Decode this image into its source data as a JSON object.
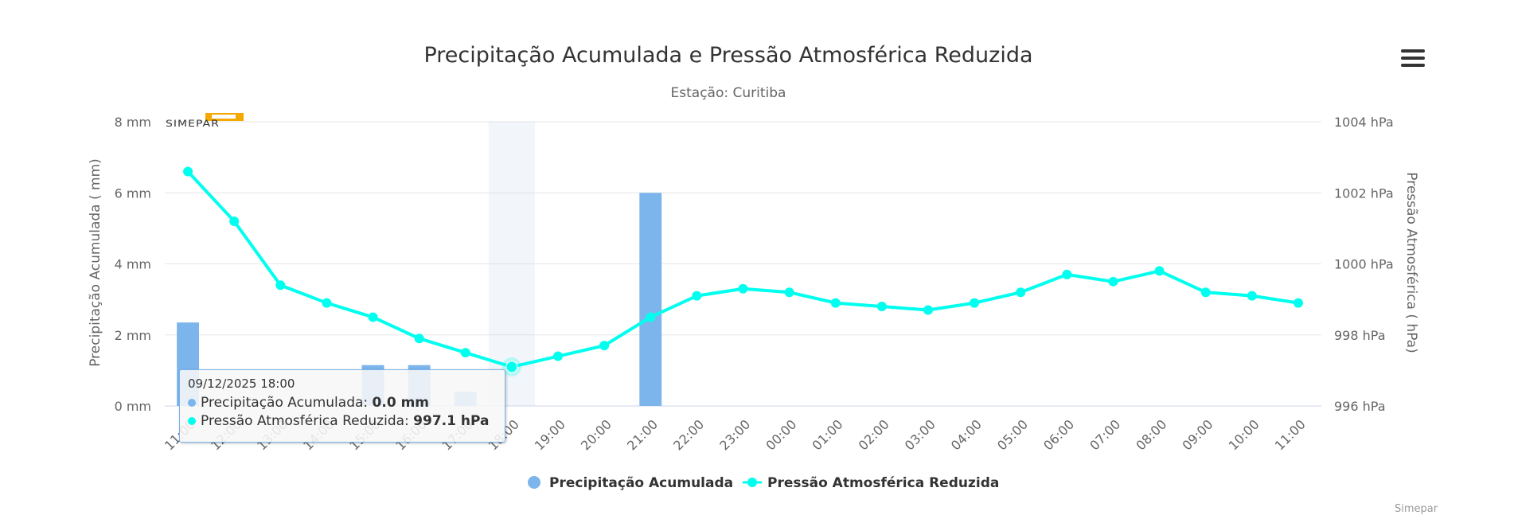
{
  "chart_data": {
    "type": "bar+line",
    "title": "Precipitação Acumulada e Pressão Atmosférica Reduzida",
    "subtitle": "Estação: Curitiba",
    "categories": [
      "11:00",
      "12:00",
      "13:00",
      "14:00",
      "15:00",
      "16:00",
      "17:00",
      "18:00",
      "19:00",
      "20:00",
      "21:00",
      "22:00",
      "23:00",
      "00:00",
      "01:00",
      "02:00",
      "03:00",
      "04:00",
      "05:00",
      "06:00",
      "07:00",
      "08:00",
      "09:00",
      "10:00",
      "11:00"
    ],
    "series": [
      {
        "name": "Precipitação Acumulada",
        "type": "bar",
        "axis": "left",
        "color": "#7cb5ec",
        "values": [
          2.35,
          0,
          0,
          0,
          1.15,
          1.15,
          0.4,
          0.0,
          0,
          0,
          6.0,
          0,
          0,
          0,
          0,
          0,
          0,
          0,
          0,
          0,
          0,
          0,
          0,
          0,
          0
        ]
      },
      {
        "name": "Pressão Atmosférica Reduzida",
        "type": "line",
        "axis": "right",
        "color": "#00ffee",
        "values": [
          1002.6,
          1001.2,
          999.4,
          998.9,
          998.5,
          997.9,
          997.5,
          997.1,
          997.4,
          997.7,
          998.5,
          999.1,
          999.3,
          999.2,
          998.9,
          998.8,
          998.7,
          998.9,
          999.2,
          999.7,
          999.5,
          999.8,
          999.2,
          999.1,
          998.9
        ]
      }
    ],
    "y_left": {
      "label": "Precipitação Acumulada ( mm)",
      "min": 0,
      "max": 8,
      "ticks": [
        "0 mm",
        "2 mm",
        "4 mm",
        "6 mm",
        "8 mm"
      ]
    },
    "y_right": {
      "label": "Pressão Atmosférica ( hPa)",
      "min": 996,
      "max": 1004,
      "ticks": [
        "996 hPa",
        "998 hPa",
        "1000 hPa",
        "1002 hPa",
        "1004 hPa"
      ]
    },
    "grid": true,
    "legend": "bottom-center",
    "highlight_index": 7
  },
  "tooltip": {
    "header": "09/12/2025 18:00",
    "rows": [
      {
        "name": "Precipitação Acumulada",
        "sep": ": ",
        "value": "0.0 mm",
        "color": "#7cb5ec"
      },
      {
        "name": "Pressão Atmosférica Reduzida",
        "sep": ": ",
        "value": "997.1 hPa",
        "color": "#00ffee"
      }
    ]
  },
  "logo": {
    "text": "SIMEPAR"
  },
  "menu": {
    "icon": "hamburger-menu-icon"
  },
  "credits": "Simepar"
}
